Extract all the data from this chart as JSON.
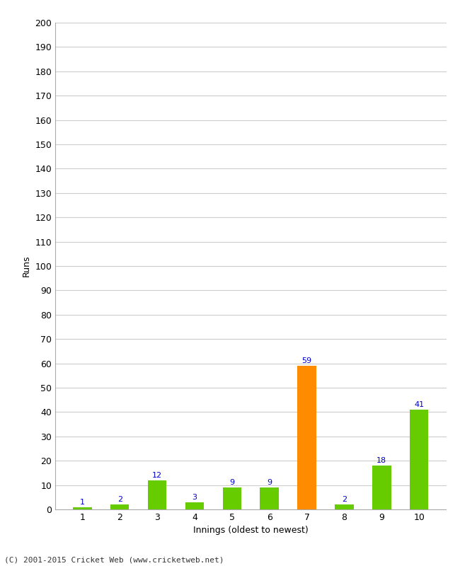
{
  "categories": [
    "1",
    "2",
    "3",
    "4",
    "5",
    "6",
    "7",
    "8",
    "9",
    "10"
  ],
  "values": [
    1,
    2,
    12,
    3,
    9,
    9,
    59,
    2,
    18,
    41
  ],
  "bar_colors": [
    "#66cc00",
    "#66cc00",
    "#66cc00",
    "#66cc00",
    "#66cc00",
    "#66cc00",
    "#ff8c00",
    "#66cc00",
    "#66cc00",
    "#66cc00"
  ],
  "xlabel": "Innings (oldest to newest)",
  "ylabel": "Runs",
  "ylim": [
    0,
    200
  ],
  "yticks": [
    0,
    10,
    20,
    30,
    40,
    50,
    60,
    70,
    80,
    90,
    100,
    110,
    120,
    130,
    140,
    150,
    160,
    170,
    180,
    190,
    200
  ],
  "label_color": "#0000cc",
  "label_fontsize": 8,
  "footer": "(C) 2001-2015 Cricket Web (www.cricketweb.net)",
  "background_color": "#ffffff",
  "grid_color": "#cccccc",
  "tick_fontsize": 9,
  "bar_width": 0.5
}
